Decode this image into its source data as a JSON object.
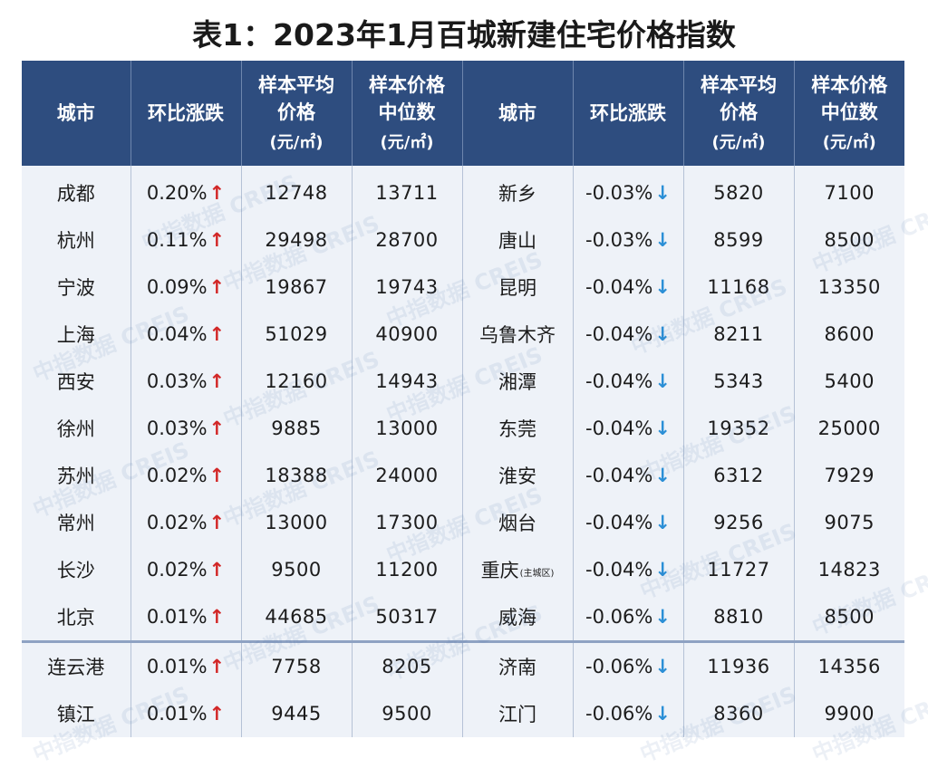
{
  "title": "表1：2023年1月百城新建住宅价格指数",
  "headers": [
    {
      "lines": [
        "城市"
      ],
      "unit": ""
    },
    {
      "lines": [
        "环比涨跌"
      ],
      "unit": ""
    },
    {
      "lines": [
        "样本平均",
        "价格"
      ],
      "unit": "(元/㎡)"
    },
    {
      "lines": [
        "样本价格",
        "中位数"
      ],
      "unit": "(元/㎡)"
    },
    {
      "lines": [
        "城市"
      ],
      "unit": ""
    },
    {
      "lines": [
        "环比涨跌"
      ],
      "unit": ""
    },
    {
      "lines": [
        "样本平均",
        "价格"
      ],
      "unit": "(元/㎡)"
    },
    {
      "lines": [
        "样本价格",
        "中位数"
      ],
      "unit": "(元/㎡)"
    }
  ],
  "arrows": {
    "up": "↑",
    "down": "↓"
  },
  "colors": {
    "header_bg": "#2e4d7f",
    "body_bg": "#eef2f8",
    "up_arrow": "#d22727",
    "down_arrow": "#2b8fd6"
  },
  "rows": [
    {
      "left": {
        "city": "成都",
        "change": "0.20%",
        "dir": "up",
        "avg": "12748",
        "median": "13711"
      },
      "right": {
        "city": "新乡",
        "city_note": "",
        "change": "-0.03%",
        "dir": "down",
        "avg": "5820",
        "median": "7100"
      }
    },
    {
      "left": {
        "city": "杭州",
        "change": "0.11%",
        "dir": "up",
        "avg": "29498",
        "median": "28700"
      },
      "right": {
        "city": "唐山",
        "city_note": "",
        "change": "-0.03%",
        "dir": "down",
        "avg": "8599",
        "median": "8500"
      }
    },
    {
      "left": {
        "city": "宁波",
        "change": "0.09%",
        "dir": "up",
        "avg": "19867",
        "median": "19743"
      },
      "right": {
        "city": "昆明",
        "city_note": "",
        "change": "-0.04%",
        "dir": "down",
        "avg": "11168",
        "median": "13350"
      }
    },
    {
      "left": {
        "city": "上海",
        "change": "0.04%",
        "dir": "up",
        "avg": "51029",
        "median": "40900"
      },
      "right": {
        "city": "乌鲁木齐",
        "city_note": "",
        "change": "-0.04%",
        "dir": "down",
        "avg": "8211",
        "median": "8600"
      }
    },
    {
      "left": {
        "city": "西安",
        "change": "0.03%",
        "dir": "up",
        "avg": "12160",
        "median": "14943"
      },
      "right": {
        "city": "湘潭",
        "city_note": "",
        "change": "-0.04%",
        "dir": "down",
        "avg": "5343",
        "median": "5400"
      }
    },
    {
      "left": {
        "city": "徐州",
        "change": "0.03%",
        "dir": "up",
        "avg": "9885",
        "median": "13000"
      },
      "right": {
        "city": "东莞",
        "city_note": "",
        "change": "-0.04%",
        "dir": "down",
        "avg": "19352",
        "median": "25000"
      }
    },
    {
      "left": {
        "city": "苏州",
        "change": "0.02%",
        "dir": "up",
        "avg": "18388",
        "median": "24000"
      },
      "right": {
        "city": "淮安",
        "city_note": "",
        "change": "-0.04%",
        "dir": "down",
        "avg": "6312",
        "median": "7929"
      }
    },
    {
      "left": {
        "city": "常州",
        "change": "0.02%",
        "dir": "up",
        "avg": "13000",
        "median": "17300"
      },
      "right": {
        "city": "烟台",
        "city_note": "",
        "change": "-0.04%",
        "dir": "down",
        "avg": "9256",
        "median": "9075"
      }
    },
    {
      "left": {
        "city": "长沙",
        "change": "0.02%",
        "dir": "up",
        "avg": "9500",
        "median": "11200"
      },
      "right": {
        "city": "重庆",
        "city_note": "(主城区)",
        "change": "-0.04%",
        "dir": "down",
        "avg": "11727",
        "median": "14823"
      }
    },
    {
      "left": {
        "city": "北京",
        "change": "0.01%",
        "dir": "up",
        "avg": "44685",
        "median": "50317"
      },
      "right": {
        "city": "威海",
        "city_note": "",
        "change": "-0.06%",
        "dir": "down",
        "avg": "8810",
        "median": "8500"
      }
    },
    {
      "left": {
        "city": "连云港",
        "change": "0.01%",
        "dir": "up",
        "avg": "7758",
        "median": "8205"
      },
      "right": {
        "city": "济南",
        "city_note": "",
        "change": "-0.06%",
        "dir": "down",
        "avg": "11936",
        "median": "14356"
      }
    },
    {
      "left": {
        "city": "镇江",
        "change": "0.01%",
        "dir": "up",
        "avg": "9445",
        "median": "9500"
      },
      "right": {
        "city": "江门",
        "city_note": "",
        "change": "-0.06%",
        "dir": "down",
        "avg": "8360",
        "median": "9900"
      }
    }
  ],
  "watermark": "中指数据 CREIS"
}
